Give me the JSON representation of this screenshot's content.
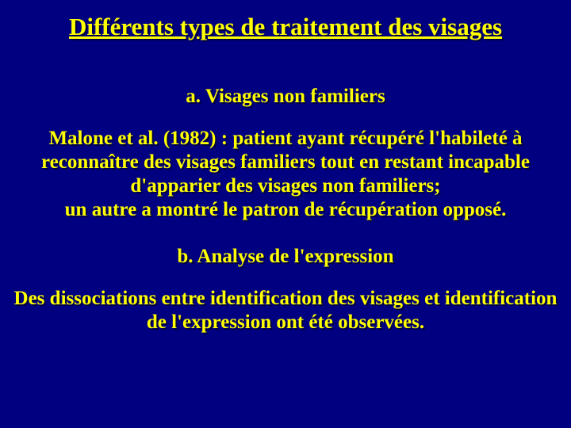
{
  "background_color": "#000080",
  "text_color": "#ffff00",
  "shadow_color": "#000040",
  "font_family": "Times New Roman",
  "title": {
    "text": "Différents types de traitement des visages",
    "fontsize": 31,
    "underline": true,
    "bold": true
  },
  "sections": [
    {
      "heading": "a. Visages non familiers",
      "heading_fontsize": 25,
      "body": "Malone et al. (1982) : patient ayant récupéré l'habileté à reconnaître des visages familiers tout en restant incapable d'apparier des visages non familiers;\nun autre a montré le patron de récupération opposé.",
      "body_fontsize": 25
    },
    {
      "heading": "b. Analyse de l'expression",
      "heading_fontsize": 25,
      "body": "Des dissociations entre identification des visages et identification de l'expression ont été observées.",
      "body_fontsize": 25
    }
  ]
}
